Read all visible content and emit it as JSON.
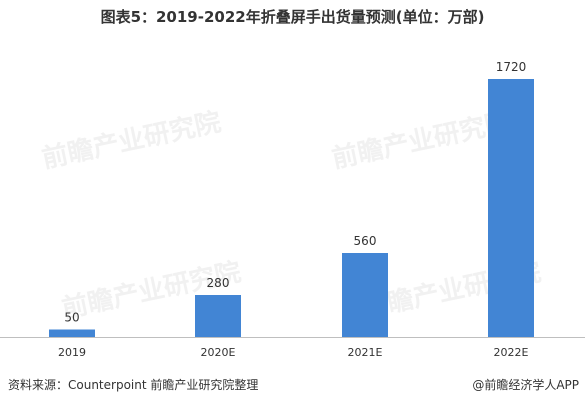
{
  "title": "图表5：2019-2022年折叠屏手出货量预测(单位：万部)",
  "colors": {
    "bar": "#4285d4",
    "axis": "#bfbfbf"
  },
  "chart_data": {
    "type": "bar",
    "categories": [
      "2019",
      "2020E",
      "2021E",
      "2022E"
    ],
    "values": [
      50,
      280,
      560,
      1720
    ],
    "ylim": [
      0,
      1800
    ],
    "grid": false,
    "legend": "none"
  },
  "footer": {
    "source": "资料来源：Counterpoint 前瞻产业研究院整理",
    "credit": "@前瞻经济学人APP"
  },
  "watermark": "前瞻产业研究院"
}
